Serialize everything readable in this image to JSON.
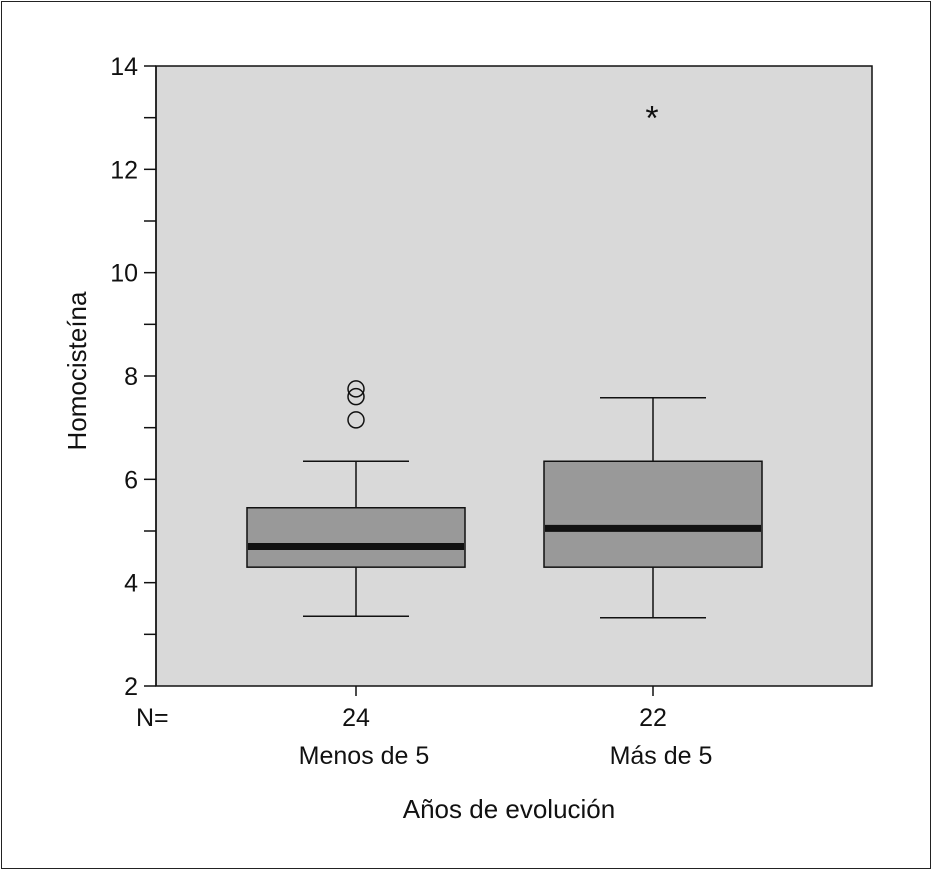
{
  "chart_data": {
    "type": "box",
    "ylabel": "Homocisteína",
    "xlabel": "Años de evolución",
    "n_label": "N=",
    "ylim": [
      2,
      14
    ],
    "y_ticks": [
      2,
      4,
      6,
      8,
      10,
      12,
      14
    ],
    "y_minor_ticks": [
      3,
      5,
      7,
      9,
      11,
      13
    ],
    "grid": false,
    "groups": [
      {
        "name": "Menos de 5",
        "n": "24",
        "whisker_low": 3.35,
        "q1": 4.3,
        "median": 4.7,
        "q3": 5.45,
        "whisker_high": 6.35,
        "outliers": [
          7.15,
          7.6,
          7.75
        ],
        "extremes": []
      },
      {
        "name": "Más de 5",
        "n": "22",
        "whisker_low": 3.32,
        "q1": 4.3,
        "median": 5.05,
        "q3": 6.35,
        "whisker_high": 7.58,
        "outliers": [],
        "extremes": [
          13.1
        ]
      }
    ],
    "colors": {
      "plot_background": "#d9d9d9",
      "box_fill": "#999999",
      "line": "#111111"
    }
  }
}
